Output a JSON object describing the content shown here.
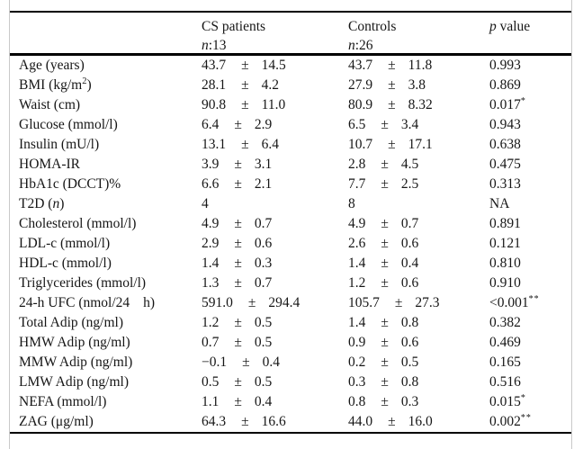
{
  "pm_symbol": "±",
  "header": {
    "cs": {
      "title": "CS patients",
      "n_label": "n",
      "n_value": ":13"
    },
    "controls": {
      "title": "Controls",
      "n_label": "n",
      "n_value": ":26"
    },
    "p": {
      "p_label": "p",
      "rest": " value"
    }
  },
  "rows": [
    {
      "label": [
        {
          "t": "Age (years)"
        }
      ],
      "cs": {
        "mean": "43.7",
        "sd": "14.5"
      },
      "controls": {
        "mean": "43.7",
        "sd": "11.8"
      },
      "p": {
        "text": "0.993",
        "sup": ""
      }
    },
    {
      "label": [
        {
          "t": "BMI (kg/m"
        },
        {
          "t": "2",
          "sup": true
        },
        {
          "t": ")"
        }
      ],
      "cs": {
        "mean": "28.1",
        "sd": "4.2"
      },
      "controls": {
        "mean": "27.9",
        "sd": "3.8"
      },
      "p": {
        "text": "0.869",
        "sup": ""
      }
    },
    {
      "label": [
        {
          "t": "Waist (cm)"
        }
      ],
      "cs": {
        "mean": "90.8",
        "sd": "11.0"
      },
      "controls": {
        "mean": "80.9",
        "sd": "8.32"
      },
      "p": {
        "text": "0.017",
        "sup": "*"
      }
    },
    {
      "label": [
        {
          "t": "Glucose (mmol/l)"
        }
      ],
      "cs": {
        "mean": "6.4",
        "sd": "2.9"
      },
      "controls": {
        "mean": "6.5",
        "sd": "3.4"
      },
      "p": {
        "text": "0.943",
        "sup": ""
      }
    },
    {
      "label": [
        {
          "t": "Insulin (mU/l)"
        }
      ],
      "cs": {
        "mean": "13.1",
        "sd": "6.4"
      },
      "controls": {
        "mean": "10.7",
        "sd": "17.1"
      },
      "p": {
        "text": "0.638",
        "sup": ""
      }
    },
    {
      "label": [
        {
          "t": "HOMA-IR"
        }
      ],
      "cs": {
        "mean": "3.9",
        "sd": "3.1"
      },
      "controls": {
        "mean": "2.8",
        "sd": "4.5"
      },
      "p": {
        "text": "0.475",
        "sup": ""
      }
    },
    {
      "label": [
        {
          "t": "HbA1c (DCCT)%"
        }
      ],
      "cs": {
        "mean": "6.6",
        "sd": "2.1"
      },
      "controls": {
        "mean": "7.7",
        "sd": "2.5"
      },
      "p": {
        "text": "0.313",
        "sup": ""
      }
    },
    {
      "label": [
        {
          "t": "T2D ("
        },
        {
          "t": "n",
          "i": true
        },
        {
          "t": ")"
        }
      ],
      "cs": {
        "mean": "4",
        "sd": ""
      },
      "controls": {
        "mean": "8",
        "sd": ""
      },
      "p": {
        "text": "NA",
        "sup": ""
      }
    },
    {
      "label": [
        {
          "t": "Cholesterol (mmol/l)"
        }
      ],
      "cs": {
        "mean": "4.9",
        "sd": "0.7"
      },
      "controls": {
        "mean": "4.9",
        "sd": "0.7"
      },
      "p": {
        "text": "0.891",
        "sup": ""
      }
    },
    {
      "label": [
        {
          "t": "LDL-c (mmol/l)"
        }
      ],
      "cs": {
        "mean": "2.9",
        "sd": "0.6"
      },
      "controls": {
        "mean": "2.6",
        "sd": "0.6"
      },
      "p": {
        "text": "0.121",
        "sup": ""
      }
    },
    {
      "label": [
        {
          "t": "HDL-c (mmol/l)"
        }
      ],
      "cs": {
        "mean": "1.4",
        "sd": "0.3"
      },
      "controls": {
        "mean": "1.4",
        "sd": "0.4"
      },
      "p": {
        "text": "0.810",
        "sup": ""
      }
    },
    {
      "label": [
        {
          "t": "Triglycerides (mmol/l)"
        }
      ],
      "cs": {
        "mean": "1.3",
        "sd": "0.7"
      },
      "controls": {
        "mean": "1.2",
        "sd": "0.6"
      },
      "p": {
        "text": "0.910",
        "sup": ""
      }
    },
    {
      "label": [
        {
          "t": "24-h UFC (nmol/24"
        },
        {
          "t": "h)",
          "gap": true
        }
      ],
      "cs": {
        "mean": "591.0",
        "sd": "294.4"
      },
      "controls": {
        "mean": "105.7",
        "sd": "27.3"
      },
      "p": {
        "text": "<0.001",
        "sup": "**"
      }
    },
    {
      "label": [
        {
          "t": "Total Adip (ng/ml)"
        }
      ],
      "cs": {
        "mean": "1.2",
        "sd": "0.5"
      },
      "controls": {
        "mean": "1.4",
        "sd": "0.8"
      },
      "p": {
        "text": "0.382",
        "sup": ""
      }
    },
    {
      "label": [
        {
          "t": "HMW Adip (ng/ml)"
        }
      ],
      "cs": {
        "mean": "0.7",
        "sd": "0.5"
      },
      "controls": {
        "mean": "0.9",
        "sd": "0.6"
      },
      "p": {
        "text": "0.469",
        "sup": ""
      }
    },
    {
      "label": [
        {
          "t": "MMW Adip (ng/ml)"
        }
      ],
      "cs": {
        "mean": "−0.1",
        "sd": "0.4"
      },
      "controls": {
        "mean": "0.2",
        "sd": "0.5"
      },
      "p": {
        "text": "0.165",
        "sup": ""
      }
    },
    {
      "label": [
        {
          "t": "LMW Adip (ng/ml)"
        }
      ],
      "cs": {
        "mean": "0.5",
        "sd": "0.5"
      },
      "controls": {
        "mean": "0.3",
        "sd": "0.8"
      },
      "p": {
        "text": "0.516",
        "sup": ""
      }
    },
    {
      "label": [
        {
          "t": "NEFA (mmol/l)"
        }
      ],
      "cs": {
        "mean": "1.1",
        "sd": "0.4"
      },
      "controls": {
        "mean": "0.8",
        "sd": "0.3"
      },
      "p": {
        "text": "0.015",
        "sup": "*"
      }
    },
    {
      "label": [
        {
          "t": "ZAG (μg/ml)"
        }
      ],
      "cs": {
        "mean": "64.3",
        "sd": "16.6"
      },
      "controls": {
        "mean": "44.0",
        "sd": "16.0"
      },
      "p": {
        "text": "0.002",
        "sup": "**"
      }
    }
  ]
}
